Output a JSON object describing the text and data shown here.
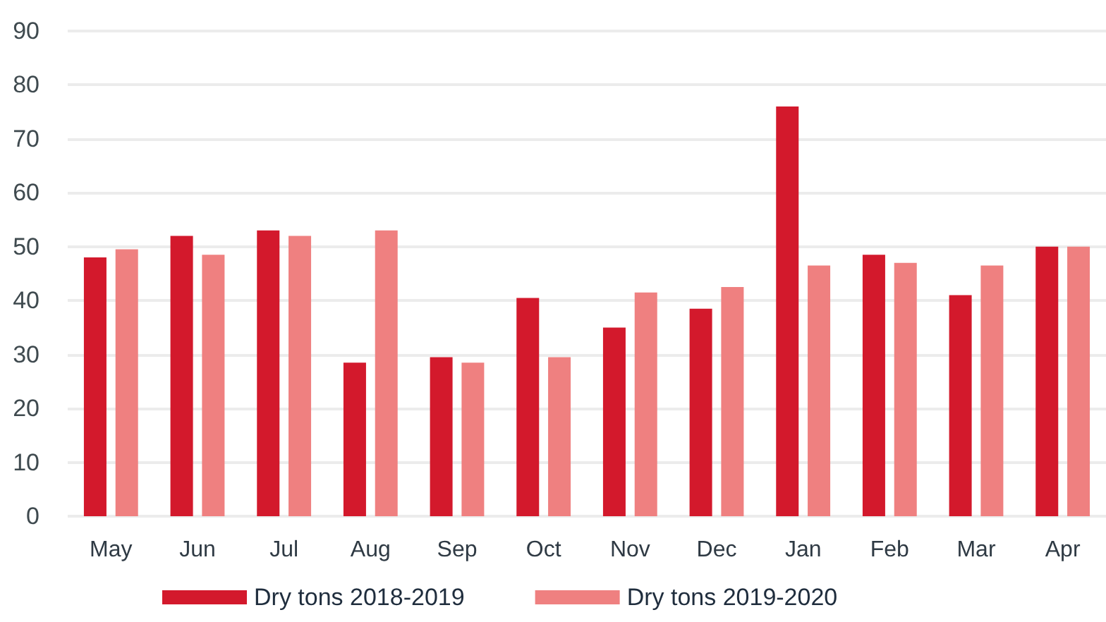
{
  "chart_data": {
    "type": "bar",
    "categories": [
      "May",
      "Jun",
      "Jul",
      "Aug",
      "Sep",
      "Oct",
      "Nov",
      "Dec",
      "Jan",
      "Feb",
      "Mar",
      "Apr"
    ],
    "series": [
      {
        "name": "Dry tons 2018-2019",
        "color": "#d3192c",
        "values": [
          48,
          52,
          53,
          28.5,
          29.5,
          40.5,
          35,
          38.5,
          76,
          48.5,
          41,
          50
        ]
      },
      {
        "name": "Dry tons 2019-2020",
        "color": "#ef8080",
        "values": [
          49.5,
          48.5,
          52,
          53,
          28.5,
          29.5,
          41.5,
          42.5,
          46.5,
          47,
          46.5,
          50
        ]
      }
    ],
    "ylim": [
      0,
      90
    ],
    "yticks": [
      0,
      10,
      20,
      30,
      40,
      50,
      60,
      70,
      80,
      90
    ],
    "grid": "y",
    "legend": "bottom"
  }
}
